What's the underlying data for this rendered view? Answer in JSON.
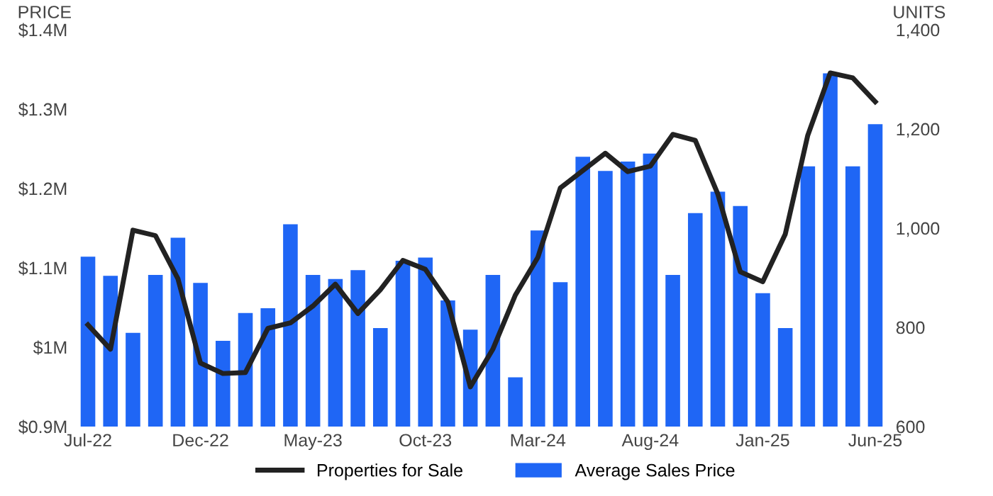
{
  "chart_data": {
    "type": "bar",
    "ylabel": "PRICE",
    "y2label": "UNITS",
    "categories": [
      "Jul-22",
      null,
      null,
      null,
      null,
      "Dec-22",
      null,
      null,
      null,
      null,
      "May-23",
      null,
      null,
      null,
      null,
      "Oct-23",
      null,
      null,
      null,
      null,
      "Mar-24",
      null,
      null,
      null,
      null,
      "Aug-24",
      null,
      null,
      null,
      null,
      "Jan-25",
      null,
      null,
      null,
      null,
      "Jun-25"
    ],
    "series": [
      {
        "name": "Properties for Sale",
        "type": "line",
        "axis": "y2",
        "color": "#222222",
        "values": [
          805,
          756,
          996,
          985,
          898,
          728,
          707,
          709,
          798,
          809,
          843,
          887,
          828,
          876,
          935,
          917,
          851,
          680,
          756,
          865,
          941,
          1081,
          1116,
          1151,
          1114,
          1125,
          1189,
          1177,
          1069,
          912,
          892,
          988,
          1187,
          1313,
          1303,
          1255
        ]
      },
      {
        "name": "Average Sales Price",
        "color": "#1f66f5",
        "values": [
          1.114,
          1.09,
          1.018,
          1.091,
          1.138,
          1.081,
          1.008,
          1.043,
          1.049,
          1.155,
          1.091,
          1.086,
          1.097,
          1.024,
          1.109,
          1.113,
          1.059,
          1.022,
          1.091,
          0.962,
          1.147,
          1.082,
          1.24,
          1.222,
          1.234,
          1.244,
          1.091,
          1.169,
          1.196,
          1.178,
          1.068,
          1.024,
          1.228,
          1.345,
          1.228,
          1.281
        ]
      }
    ],
    "ylim": [
      0.9,
      1.4
    ],
    "yticks": [
      {
        "value": 0.9,
        "label": "$0.9M"
      },
      {
        "value": 1.0,
        "label": "$1M"
      },
      {
        "value": 1.1,
        "label": "$1.1M"
      },
      {
        "value": 1.2,
        "label": "$1.2M"
      },
      {
        "value": 1.3,
        "label": "$1.3M"
      },
      {
        "value": 1.4,
        "label": "$1.4M"
      }
    ],
    "y2lim": [
      600,
      1400
    ],
    "y2ticks": [
      {
        "value": 600,
        "label": "600"
      },
      {
        "value": 800,
        "label": "800"
      },
      {
        "value": 1000,
        "label": "1,000"
      },
      {
        "value": 1200,
        "label": "1,200"
      },
      {
        "value": 1400,
        "label": "1,400"
      }
    ],
    "legend": "bottom",
    "grid": false,
    "marker": "none",
    "line_style": "solid"
  }
}
